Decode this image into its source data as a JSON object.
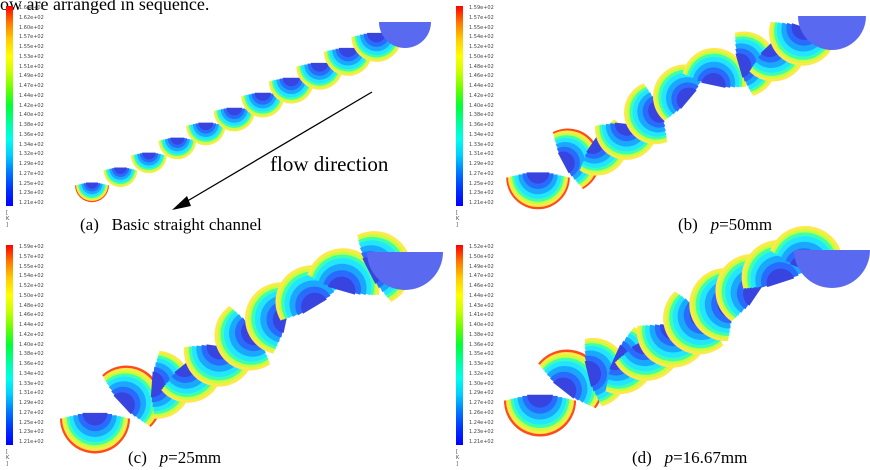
{
  "top_text": "ow are arranged in sequence.",
  "flow_label": "flow direction",
  "legend_unit": "[ K ]",
  "panels": [
    {
      "id": "a",
      "caption_prefix": "(a)",
      "caption_text": "Basic straight channel",
      "caption_italic": "",
      "caption_rest": "",
      "legend": [
        "1.64e+02",
        "1.62e+02",
        "1.60e+02",
        "1.57e+02",
        "1.55e+02",
        "1.53e+02",
        "1.51e+02",
        "1.49e+02",
        "1.47e+02",
        "1.44e+02",
        "1.42e+02",
        "1.40e+02",
        "1.38e+02",
        "1.36e+02",
        "1.34e+02",
        "1.32e+02",
        "1.29e+02",
        "1.27e+02",
        "1.25e+02",
        "1.23e+02",
        "1.21e+02"
      ]
    },
    {
      "id": "b",
      "caption_prefix": "(b)",
      "caption_text": "",
      "caption_italic": "p",
      "caption_rest": "=50mm",
      "legend": [
        "1.59e+02",
        "1.57e+02",
        "1.55e+02",
        "1.54e+02",
        "1.52e+02",
        "1.50e+02",
        "1.48e+02",
        "1.46e+02",
        "1.44e+02",
        "1.42e+02",
        "1.40e+02",
        "1.38e+02",
        "1.36e+02",
        "1.34e+02",
        "1.33e+02",
        "1.31e+02",
        "1.29e+02",
        "1.27e+02",
        "1.25e+02",
        "1.23e+02",
        "1.21e+02"
      ]
    },
    {
      "id": "c",
      "caption_prefix": "(c)",
      "caption_text": "",
      "caption_italic": "p",
      "caption_rest": "=25mm",
      "legend": [
        "1.59e+02",
        "1.57e+02",
        "1.55e+02",
        "1.54e+02",
        "1.52e+02",
        "1.50e+02",
        "1.48e+02",
        "1.46e+02",
        "1.44e+02",
        "1.42e+02",
        "1.40e+02",
        "1.38e+02",
        "1.36e+02",
        "1.34e+02",
        "1.33e+02",
        "1.31e+02",
        "1.29e+02",
        "1.27e+02",
        "1.25e+02",
        "1.23e+02",
        "1.21e+02"
      ]
    },
    {
      "id": "d",
      "caption_prefix": "(d)",
      "caption_text": "",
      "caption_italic": "p",
      "caption_rest": "=16.67mm",
      "legend": [
        "1.52e+02",
        "1.50e+02",
        "1.49e+02",
        "1.47e+02",
        "1.46e+02",
        "1.44e+02",
        "1.43e+02",
        "1.41e+02",
        "1.40e+02",
        "1.38e+02",
        "1.36e+02",
        "1.35e+02",
        "1.33e+02",
        "1.32e+02",
        "1.30e+02",
        "1.29e+02",
        "1.27e+02",
        "1.26e+02",
        "1.24e+02",
        "1.23e+02",
        "1.21e+02"
      ]
    }
  ],
  "colors": {
    "legend_gradient": [
      "#ff0000",
      "#ff7700",
      "#ffcc00",
      "#ffff00",
      "#c8ff00",
      "#66ff00",
      "#00ff33",
      "#00ff99",
      "#00ffee",
      "#00ccff",
      "#0077ff",
      "#0033ff",
      "#0000ff"
    ],
    "core": "#3844e0",
    "plain": "#5a6af0"
  }
}
